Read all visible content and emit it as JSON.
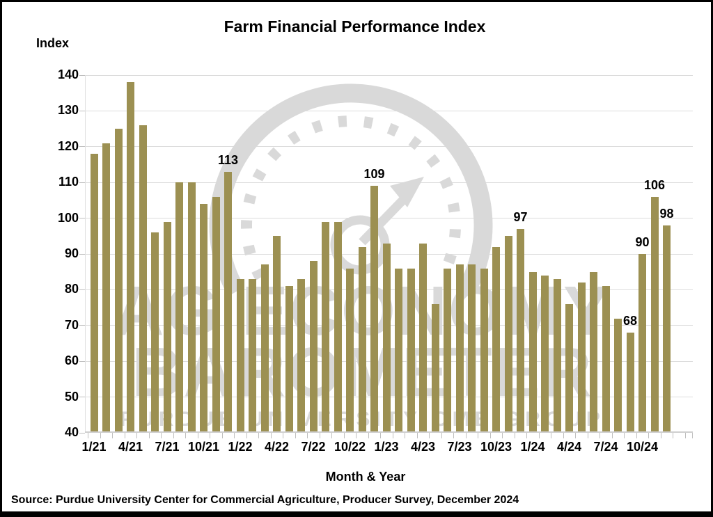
{
  "title": "Farm Financial Performance Index",
  "y_axis": {
    "label": "Index",
    "tick_labels": [
      "140",
      "130",
      "120",
      "110",
      "100",
      "90",
      "80",
      "70",
      "60",
      "50",
      "40"
    ],
    "min": 40,
    "max": 140
  },
  "x_axis": {
    "label": "Month & Year",
    "tick_labels": [
      "1/21",
      "4/21",
      "7/21",
      "10/21",
      "1/22",
      "4/22",
      "7/22",
      "10/22",
      "1/23",
      "4/23",
      "7/23",
      "10/23",
      "1/24",
      "4/24",
      "7/24",
      "10/24"
    ]
  },
  "source": "Source: Purdue University Center for Commercial Agriculture, Producer Survey, December 2024",
  "watermark": {
    "line1": "AG ECONOMY",
    "line2": "BAROMETER",
    "line3": "PURDUE UNIVERSITY  CME GROUP",
    "color": "#d9d9d9"
  },
  "colors": {
    "bar": "#9c9052",
    "gridline": "#dcdcdc",
    "text": "#000000",
    "background": "#ffffff",
    "border": "#000000"
  },
  "chart_data": {
    "type": "bar",
    "title": "Farm Financial Performance Index",
    "xlabel": "Month & Year",
    "ylabel": "Index",
    "ylim": [
      40,
      140
    ],
    "grid": true,
    "x": [
      "1/21",
      "2/21",
      "3/21",
      "4/21",
      "5/21",
      "6/21",
      "7/21",
      "8/21",
      "9/21",
      "10/21",
      "11/21",
      "12/21",
      "1/22",
      "2/22",
      "3/22",
      "4/22",
      "5/22",
      "6/22",
      "7/22",
      "8/22",
      "9/22",
      "10/22",
      "11/22",
      "12/22",
      "1/23",
      "2/23",
      "3/23",
      "4/23",
      "5/23",
      "6/23",
      "7/23",
      "8/23",
      "9/23",
      "10/23",
      "11/23",
      "12/23",
      "1/24",
      "2/24",
      "3/24",
      "4/24",
      "5/24",
      "6/24",
      "7/24",
      "8/24",
      "9/24",
      "10/24",
      "11/24",
      "12/24"
    ],
    "values": [
      118,
      121,
      125,
      138,
      126,
      96,
      99,
      110,
      110,
      104,
      106,
      113,
      83,
      83,
      87,
      95,
      81,
      83,
      88,
      99,
      99,
      86,
      92,
      109,
      93,
      86,
      86,
      93,
      76,
      86,
      87,
      87,
      86,
      92,
      95,
      97,
      85,
      84,
      83,
      76,
      82,
      85,
      81,
      72,
      68,
      90,
      106,
      98
    ],
    "labeled_points": [
      {
        "x": "12/21",
        "label": "113"
      },
      {
        "x": "12/22",
        "label": "109"
      },
      {
        "x": "12/23",
        "label": "97"
      },
      {
        "x": "9/24",
        "label": "68"
      },
      {
        "x": "10/24",
        "label": "90"
      },
      {
        "x": "11/24",
        "label": "106"
      },
      {
        "x": "12/24",
        "label": "98"
      }
    ]
  }
}
